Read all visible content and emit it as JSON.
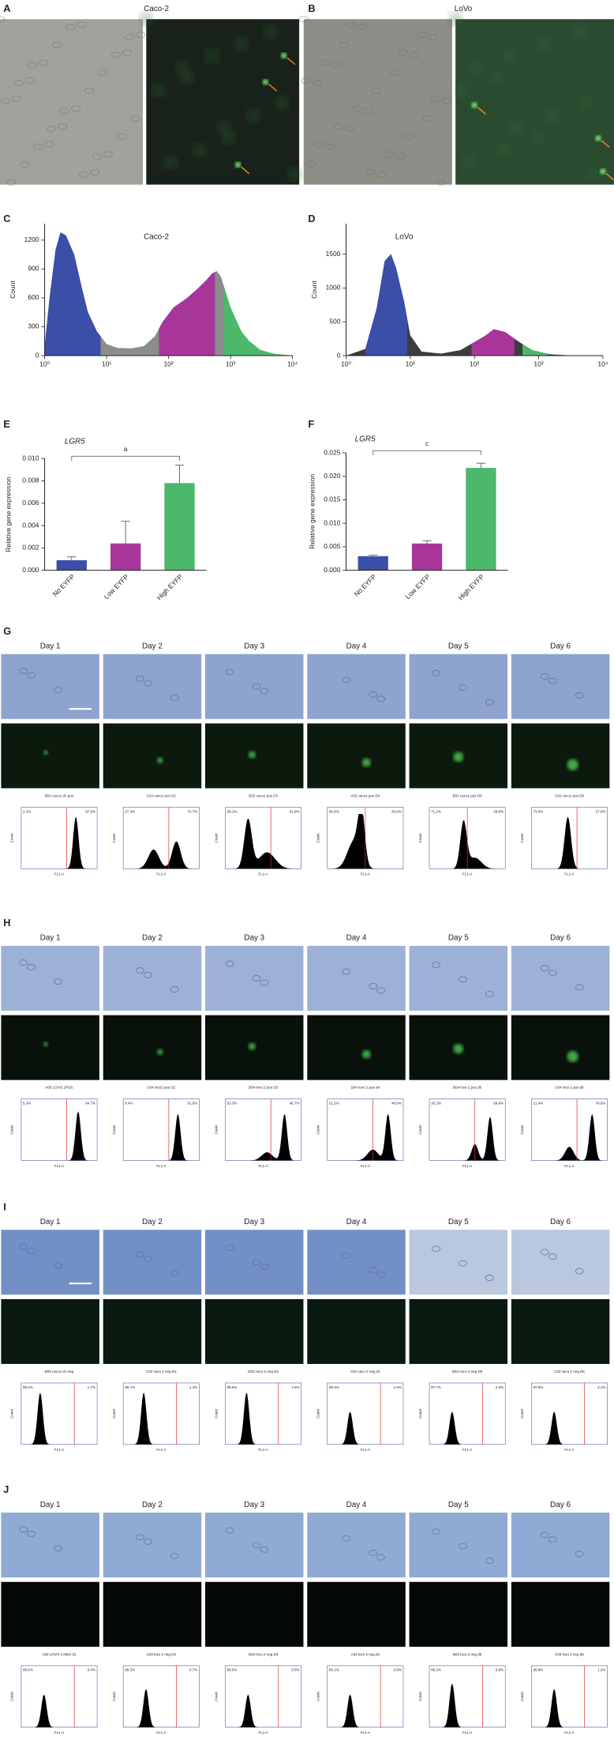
{
  "panel_a": {
    "label": "A",
    "title": "Caco-2"
  },
  "panel_b": {
    "label": "B",
    "title": "LoVo"
  },
  "chart_data": [
    {
      "type": "area",
      "label": "C",
      "title": "Caco-2",
      "ylabel": "Count",
      "color": "#8c8c8c",
      "xlog": true,
      "x": [
        1,
        1.2,
        1.5,
        1.8,
        2.2,
        3,
        4,
        5,
        7,
        10,
        15,
        25,
        40,
        60,
        80,
        120,
        200,
        300,
        400,
        500,
        600,
        700,
        800,
        1000,
        1500,
        2000,
        3000,
        5000,
        10000
      ],
      "values": [
        100,
        600,
        1100,
        1280,
        1250,
        1050,
        700,
        450,
        250,
        120,
        80,
        75,
        100,
        200,
        350,
        500,
        600,
        700,
        780,
        850,
        880,
        820,
        700,
        500,
        250,
        150,
        60,
        20,
        0
      ],
      "gates": [
        {
          "range": [
            1,
            8
          ],
          "color": "#3b4ea8"
        },
        {
          "range": [
            70,
            560
          ],
          "color": "#a8359a"
        },
        {
          "range": [
            780,
            10000
          ],
          "color": "#4cb86a"
        }
      ],
      "xlim": [
        1,
        10000
      ],
      "xticks": [
        {
          "value": 1,
          "label": "10⁰"
        },
        {
          "value": 10,
          "label": "10¹"
        },
        {
          "value": 100,
          "label": "10²"
        },
        {
          "value": 1000,
          "label": "10³"
        },
        {
          "value": 10000,
          "label": "10⁴"
        }
      ],
      "ylim": [
        0,
        1370
      ],
      "yticks": [
        0,
        300,
        600,
        900,
        1200
      ]
    },
    {
      "type": "area",
      "label": "D",
      "title": "LoVo",
      "ylabel": "Count",
      "color": "#3d3d3d",
      "xlog": true,
      "x": [
        1,
        2,
        3,
        4,
        5,
        6,
        8,
        10,
        15,
        30,
        60,
        100,
        150,
        200,
        300,
        500,
        800,
        1500,
        3000,
        10000
      ],
      "values": [
        0,
        100,
        700,
        1400,
        1500,
        1300,
        800,
        300,
        60,
        30,
        80,
        200,
        300,
        390,
        350,
        200,
        80,
        20,
        5,
        0
      ],
      "gates": [
        {
          "range": [
            2,
            9
          ],
          "color": "#3b4ea8"
        },
        {
          "range": [
            90,
            420
          ],
          "color": "#a8359a"
        },
        {
          "range": [
            560,
            1400
          ],
          "color": "#4cb86a"
        }
      ],
      "xlim": [
        1,
        10000
      ],
      "xticks": [
        {
          "value": 1,
          "label": "10⁰"
        },
        {
          "value": 10,
          "label": "10¹"
        },
        {
          "value": 100,
          "label": "10²"
        },
        {
          "value": 1000,
          "label": "10³"
        },
        {
          "value": 10000,
          "label": "10⁴"
        }
      ],
      "ylim": [
        0,
        1950
      ],
      "yticks": [
        0,
        500,
        1000,
        1500
      ]
    },
    {
      "type": "bar",
      "label": "E",
      "title": "LGR5",
      "ylabel": "Relative gene expression",
      "significance": "a",
      "categories": [
        "No EYFP",
        "Low EYFP",
        "High EYFP"
      ],
      "values": [
        0.0009,
        0.0024,
        0.0078
      ],
      "errors": [
        0.0003,
        0.002,
        0.0016
      ],
      "colors": [
        "#3b4ea8",
        "#a8359a",
        "#4cb86a"
      ],
      "ylim": [
        0,
        0.01
      ],
      "yticks": [
        {
          "value": 0,
          "label": "0.000"
        },
        {
          "value": 0.002,
          "label": "0.002"
        },
        {
          "value": 0.004,
          "label": "0.004"
        },
        {
          "value": 0.006,
          "label": "0.006"
        },
        {
          "value": 0.008,
          "label": "0.008"
        },
        {
          "value": 0.01,
          "label": "0.010"
        }
      ]
    },
    {
      "type": "bar",
      "label": "F",
      "title": "LGR5",
      "ylabel": "Relative gene expression",
      "significance": "c",
      "categories": [
        "No EYFP",
        "Low EYFP",
        "High EYFP"
      ],
      "values": [
        0.003,
        0.0057,
        0.0218
      ],
      "errors": [
        0.0002,
        0.0006,
        0.001
      ],
      "colors": [
        "#3b4ea8",
        "#a8359a",
        "#4cb86a"
      ],
      "ylim": [
        0,
        0.025
      ],
      "yticks": [
        {
          "value": 0,
          "label": "0.000"
        },
        {
          "value": 0.005,
          "label": "0.005"
        },
        {
          "value": 0.01,
          "label": "0.010"
        },
        {
          "value": 0.015,
          "label": "0.015"
        },
        {
          "value": 0.02,
          "label": "0.020"
        },
        {
          "value": 0.025,
          "label": "0.025"
        }
      ]
    }
  ],
  "flow_axis": {
    "ylabel": "Count",
    "xlabel": "FL1-A"
  },
  "time_course": [
    {
      "label": "G",
      "bright": "#8ea3cf",
      "dark": "#0c1a0e",
      "spots": true,
      "days": [
        "Day 1",
        "Day 2",
        "Day 3",
        "Day 4",
        "Day 5",
        "Day 6"
      ],
      "flow": [
        {
          "title": "B02 caco1 d1 pos",
          "left": "2.1%",
          "right": "97.9%",
          "gate": 0.6,
          "peaks": [
            [
              0.72,
              0.95,
              0.05
            ]
          ]
        },
        {
          "title": "C02 caco1 pos D2",
          "left": "27.3%",
          "right": "72.7%",
          "gate": 0.6,
          "peaks": [
            [
              0.4,
              0.35,
              0.1
            ],
            [
              0.7,
              0.5,
              0.08
            ]
          ]
        },
        {
          "title": "D02 caco1 pos D3",
          "left": "58.1%",
          "right": "41.9%",
          "gate": 0.6,
          "peaks": [
            [
              0.3,
              0.9,
              0.07
            ],
            [
              0.55,
              0.3,
              0.15
            ]
          ]
        },
        {
          "title": "A02 caco1 pos D4",
          "left": "66.4%",
          "right": "33.6%",
          "gate": 0.5,
          "peaks": [
            [
              0.45,
              0.95,
              0.06
            ],
            [
              0.35,
              0.5,
              0.12
            ]
          ]
        },
        {
          "title": "B02 caco1 pos D5",
          "left": "71.2%",
          "right": "28.8%",
          "gate": 0.5,
          "peaks": [
            [
              0.45,
              0.85,
              0.06
            ],
            [
              0.6,
              0.2,
              0.12
            ]
          ]
        },
        {
          "title": "C02 caco1 pos D6",
          "left": "73.0%",
          "right": "27.0%",
          "gate": 0.6,
          "peaks": [
            [
              0.48,
              0.95,
              0.06
            ]
          ]
        }
      ]
    },
    {
      "label": "H",
      "bright": "#9db0d6",
      "dark": "#08120a",
      "spots": true,
      "days": [
        "Day 1",
        "Day 2",
        "Day 3",
        "Day 4",
        "Day 5",
        "Day 6"
      ],
      "flow": [
        {
          "title": "A05 LOVO 2POS",
          "left": "5.3%",
          "right": "94.7%",
          "gate": 0.6,
          "peaks": [
            [
              0.75,
              0.9,
              0.05
            ]
          ]
        },
        {
          "title": "C04 lovo2 pos D2",
          "left": "8.4%",
          "right": "91.6%",
          "gate": 0.6,
          "peaks": [
            [
              0.72,
              0.85,
              0.05
            ]
          ]
        },
        {
          "title": "D04 lovo 2 pos D3",
          "left": "53.3%",
          "right": "46.7%",
          "gate": 0.6,
          "peaks": [
            [
              0.55,
              0.15,
              0.1
            ],
            [
              0.78,
              0.85,
              0.05
            ]
          ]
        },
        {
          "title": "D04 lovo 2 pos d4",
          "left": "51.1%",
          "right": "48.9%",
          "gate": 0.6,
          "peaks": [
            [
              0.6,
              0.2,
              0.1
            ],
            [
              0.8,
              0.85,
              0.05
            ]
          ]
        },
        {
          "title": "B04 lovo 2 pos d5",
          "left": "30.2%",
          "right": "69.8%",
          "gate": 0.6,
          "peaks": [
            [
              0.6,
              0.3,
              0.06
            ],
            [
              0.8,
              0.8,
              0.05
            ]
          ]
        },
        {
          "title": "C04 lovo 2 pos d6",
          "left": "21.4%",
          "right": "78.6%",
          "gate": 0.6,
          "peaks": [
            [
              0.5,
              0.25,
              0.08
            ],
            [
              0.8,
              0.85,
              0.05
            ]
          ]
        }
      ]
    },
    {
      "label": "I",
      "bright": "#7290c6",
      "dark": "#0b1a10",
      "spots": false,
      "days": [
        "Day 1",
        "Day 2",
        "Day 3",
        "Day 4",
        "Day 5",
        "Day 6"
      ],
      "flow": [
        {
          "title": "B03 caco1 d1 neg",
          "left": "98.3%",
          "right": "1.7%",
          "gate": 0.7,
          "peaks": [
            [
              0.25,
              0.95,
              0.05
            ]
          ]
        },
        {
          "title": "C03 caco 2 neg D2",
          "left": "98.7%",
          "right": "1.3%",
          "gate": 0.7,
          "peaks": [
            [
              0.27,
              0.95,
              0.05
            ]
          ]
        },
        {
          "title": "D03 caco 2 neg D3",
          "left": "98.5%",
          "right": "1.5%",
          "gate": 0.7,
          "peaks": [
            [
              0.28,
              0.95,
              0.05
            ]
          ]
        },
        {
          "title": "A03 caco 2 neg d4",
          "left": "98.4%",
          "right": "1.6%",
          "gate": 0.7,
          "peaks": [
            [
              0.3,
              0.6,
              0.05
            ]
          ]
        },
        {
          "title": "B03 caco 2 neg D5",
          "left": "97.7%",
          "right": "2.3%",
          "gate": 0.7,
          "peaks": [
            [
              0.3,
              0.6,
              0.05
            ]
          ]
        },
        {
          "title": "C03 caco 2 neg D6",
          "left": "97.9%",
          "right": "2.1%",
          "gate": 0.7,
          "peaks": [
            [
              0.3,
              0.6,
              0.05
            ]
          ]
        }
      ]
    },
    {
      "label": "J",
      "bright": "#90aad6",
      "dark": "#040906",
      "spots": false,
      "days": [
        "Day 1",
        "Day 2",
        "Day 3",
        "Day 4",
        "Day 5",
        "Day 6"
      ],
      "flow": [
        {
          "title": "A03 LOVO 2 NEG d1",
          "left": "99.6%",
          "right": "0.4%",
          "gate": 0.7,
          "peaks": [
            [
              0.3,
              0.6,
              0.05
            ]
          ]
        },
        {
          "title": "C03 lovo 2 neg D2",
          "left": "99.3%",
          "right": "0.7%",
          "gate": 0.7,
          "peaks": [
            [
              0.3,
              0.7,
              0.05
            ]
          ]
        },
        {
          "title": "D03 lovo 2 neg D3",
          "left": "99.5%",
          "right": "0.5%",
          "gate": 0.7,
          "peaks": [
            [
              0.3,
              0.6,
              0.05
            ]
          ]
        },
        {
          "title": "A03 lovo 2 neg d4",
          "left": "99.1%",
          "right": "0.9%",
          "gate": 0.7,
          "peaks": [
            [
              0.3,
              0.6,
              0.05
            ]
          ]
        },
        {
          "title": "B03 lovo 2 neg d5",
          "left": "99.2%",
          "right": "0.8%",
          "gate": 0.7,
          "peaks": [
            [
              0.3,
              0.8,
              0.05
            ]
          ]
        },
        {
          "title": "C03 lovo 2 neg d6",
          "left": "98.8%",
          "right": "1.2%",
          "gate": 0.7,
          "peaks": [
            [
              0.3,
              0.7,
              0.05
            ]
          ]
        }
      ]
    }
  ]
}
